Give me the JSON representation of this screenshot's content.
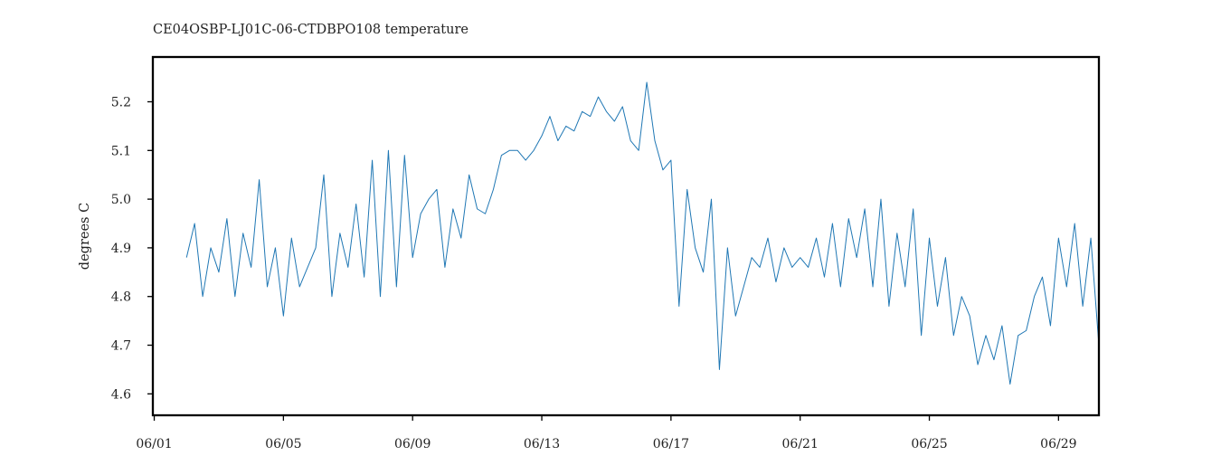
{
  "chart_data": {
    "type": "line",
    "title": "CE04OSBP-LJ01C-06-CTDBPO108 temperature",
    "xlabel": "",
    "ylabel": "degrees C",
    "x_ticks": [
      "06/01",
      "06/05",
      "06/09",
      "06/13",
      "06/17",
      "06/21",
      "06/25",
      "06/29"
    ],
    "y_ticks": [
      "4.6",
      "4.7",
      "4.8",
      "4.9",
      "5.0",
      "5.1",
      "5.2"
    ],
    "xlim": [
      "05-31 22:58",
      "06-30 06:00"
    ],
    "ylim": [
      4.556,
      5.292
    ],
    "grid": false,
    "legend": "none",
    "colors": {
      "series": "#1f77b4",
      "axes": "#000000"
    },
    "series": [
      {
        "x": [
          "06-02 00:00",
          "06-02 06:00",
          "06-02 12:00",
          "06-02 18:00",
          "06-03 00:00",
          "06-03 06:00",
          "06-03 12:00",
          "06-03 18:00",
          "06-04 00:00",
          "06-04 06:00",
          "06-04 12:00",
          "06-04 18:00",
          "06-05 00:00",
          "06-05 06:00",
          "06-05 12:00",
          "06-05 18:00",
          "06-06 00:00",
          "06-06 06:00",
          "06-06 12:00",
          "06-06 18:00",
          "06-07 00:00",
          "06-07 06:00",
          "06-07 12:00",
          "06-07 18:00",
          "06-08 00:00",
          "06-08 06:00",
          "06-08 12:00",
          "06-08 18:00",
          "06-09 00:00",
          "06-09 06:00",
          "06-09 12:00",
          "06-09 18:00",
          "06-10 00:00",
          "06-10 06:00",
          "06-10 12:00",
          "06-10 18:00",
          "06-11 00:00",
          "06-11 06:00",
          "06-11 12:00",
          "06-11 18:00",
          "06-12 00:00",
          "06-12 06:00",
          "06-12 12:00",
          "06-12 18:00",
          "06-13 00:00",
          "06-13 06:00",
          "06-13 12:00",
          "06-13 18:00",
          "06-14 00:00",
          "06-14 06:00",
          "06-14 12:00",
          "06-14 18:00",
          "06-15 00:00",
          "06-15 06:00",
          "06-15 12:00",
          "06-15 18:00",
          "06-16 00:00",
          "06-16 06:00",
          "06-16 12:00",
          "06-16 18:00",
          "06-17 00:00",
          "06-17 06:00",
          "06-17 12:00",
          "06-17 18:00",
          "06-18 00:00",
          "06-18 06:00",
          "06-18 12:00",
          "06-18 18:00",
          "06-19 00:00",
          "06-19 06:00",
          "06-19 12:00",
          "06-19 18:00",
          "06-20 00:00",
          "06-20 06:00",
          "06-20 12:00",
          "06-20 18:00",
          "06-21 00:00",
          "06-21 06:00",
          "06-21 12:00",
          "06-21 18:00",
          "06-22 00:00",
          "06-22 06:00",
          "06-22 12:00",
          "06-22 18:00",
          "06-23 00:00",
          "06-23 06:00",
          "06-23 12:00",
          "06-23 18:00",
          "06-24 00:00",
          "06-24 06:00",
          "06-24 12:00",
          "06-24 18:00",
          "06-25 00:00",
          "06-25 06:00",
          "06-25 12:00",
          "06-25 18:00",
          "06-26 00:00",
          "06-26 06:00",
          "06-26 12:00",
          "06-26 18:00",
          "06-27 00:00",
          "06-27 06:00",
          "06-27 12:00",
          "06-27 18:00",
          "06-28 00:00",
          "06-28 06:00",
          "06-28 12:00",
          "06-28 18:00",
          "06-29 00:00",
          "06-29 06:00",
          "06-29 12:00",
          "06-29 18:00",
          "06-30 00:00",
          "06-30 06:00"
        ],
        "y": [
          4.88,
          4.95,
          4.8,
          4.9,
          4.85,
          4.96,
          4.8,
          4.93,
          4.86,
          5.04,
          4.82,
          4.9,
          4.76,
          4.92,
          4.82,
          4.86,
          4.9,
          5.05,
          4.8,
          4.93,
          4.86,
          4.99,
          4.84,
          5.08,
          4.8,
          5.1,
          4.82,
          5.09,
          4.88,
          4.97,
          5.0,
          5.02,
          4.86,
          4.98,
          4.92,
          5.05,
          4.98,
          4.97,
          5.02,
          5.09,
          5.1,
          5.1,
          5.08,
          5.1,
          5.13,
          5.17,
          5.12,
          5.15,
          5.14,
          5.18,
          5.17,
          5.21,
          5.18,
          5.16,
          5.19,
          5.12,
          5.1,
          5.24,
          5.12,
          5.06,
          5.08,
          4.78,
          5.02,
          4.9,
          4.85,
          5.0,
          4.65,
          4.9,
          4.76,
          4.82,
          4.88,
          4.86,
          4.92,
          4.83,
          4.9,
          4.86,
          4.88,
          4.86,
          4.92,
          4.84,
          4.95,
          4.82,
          4.96,
          4.88,
          4.98,
          4.82,
          5.0,
          4.78,
          4.93,
          4.82,
          4.98,
          4.72,
          4.92,
          4.78,
          4.88,
          4.72,
          4.8,
          4.76,
          4.66,
          4.72,
          4.67,
          4.74,
          4.62,
          4.72,
          4.73,
          4.8,
          4.84,
          4.74,
          4.92,
          4.82,
          4.95,
          4.78,
          4.92,
          4.7
        ]
      }
    ]
  }
}
